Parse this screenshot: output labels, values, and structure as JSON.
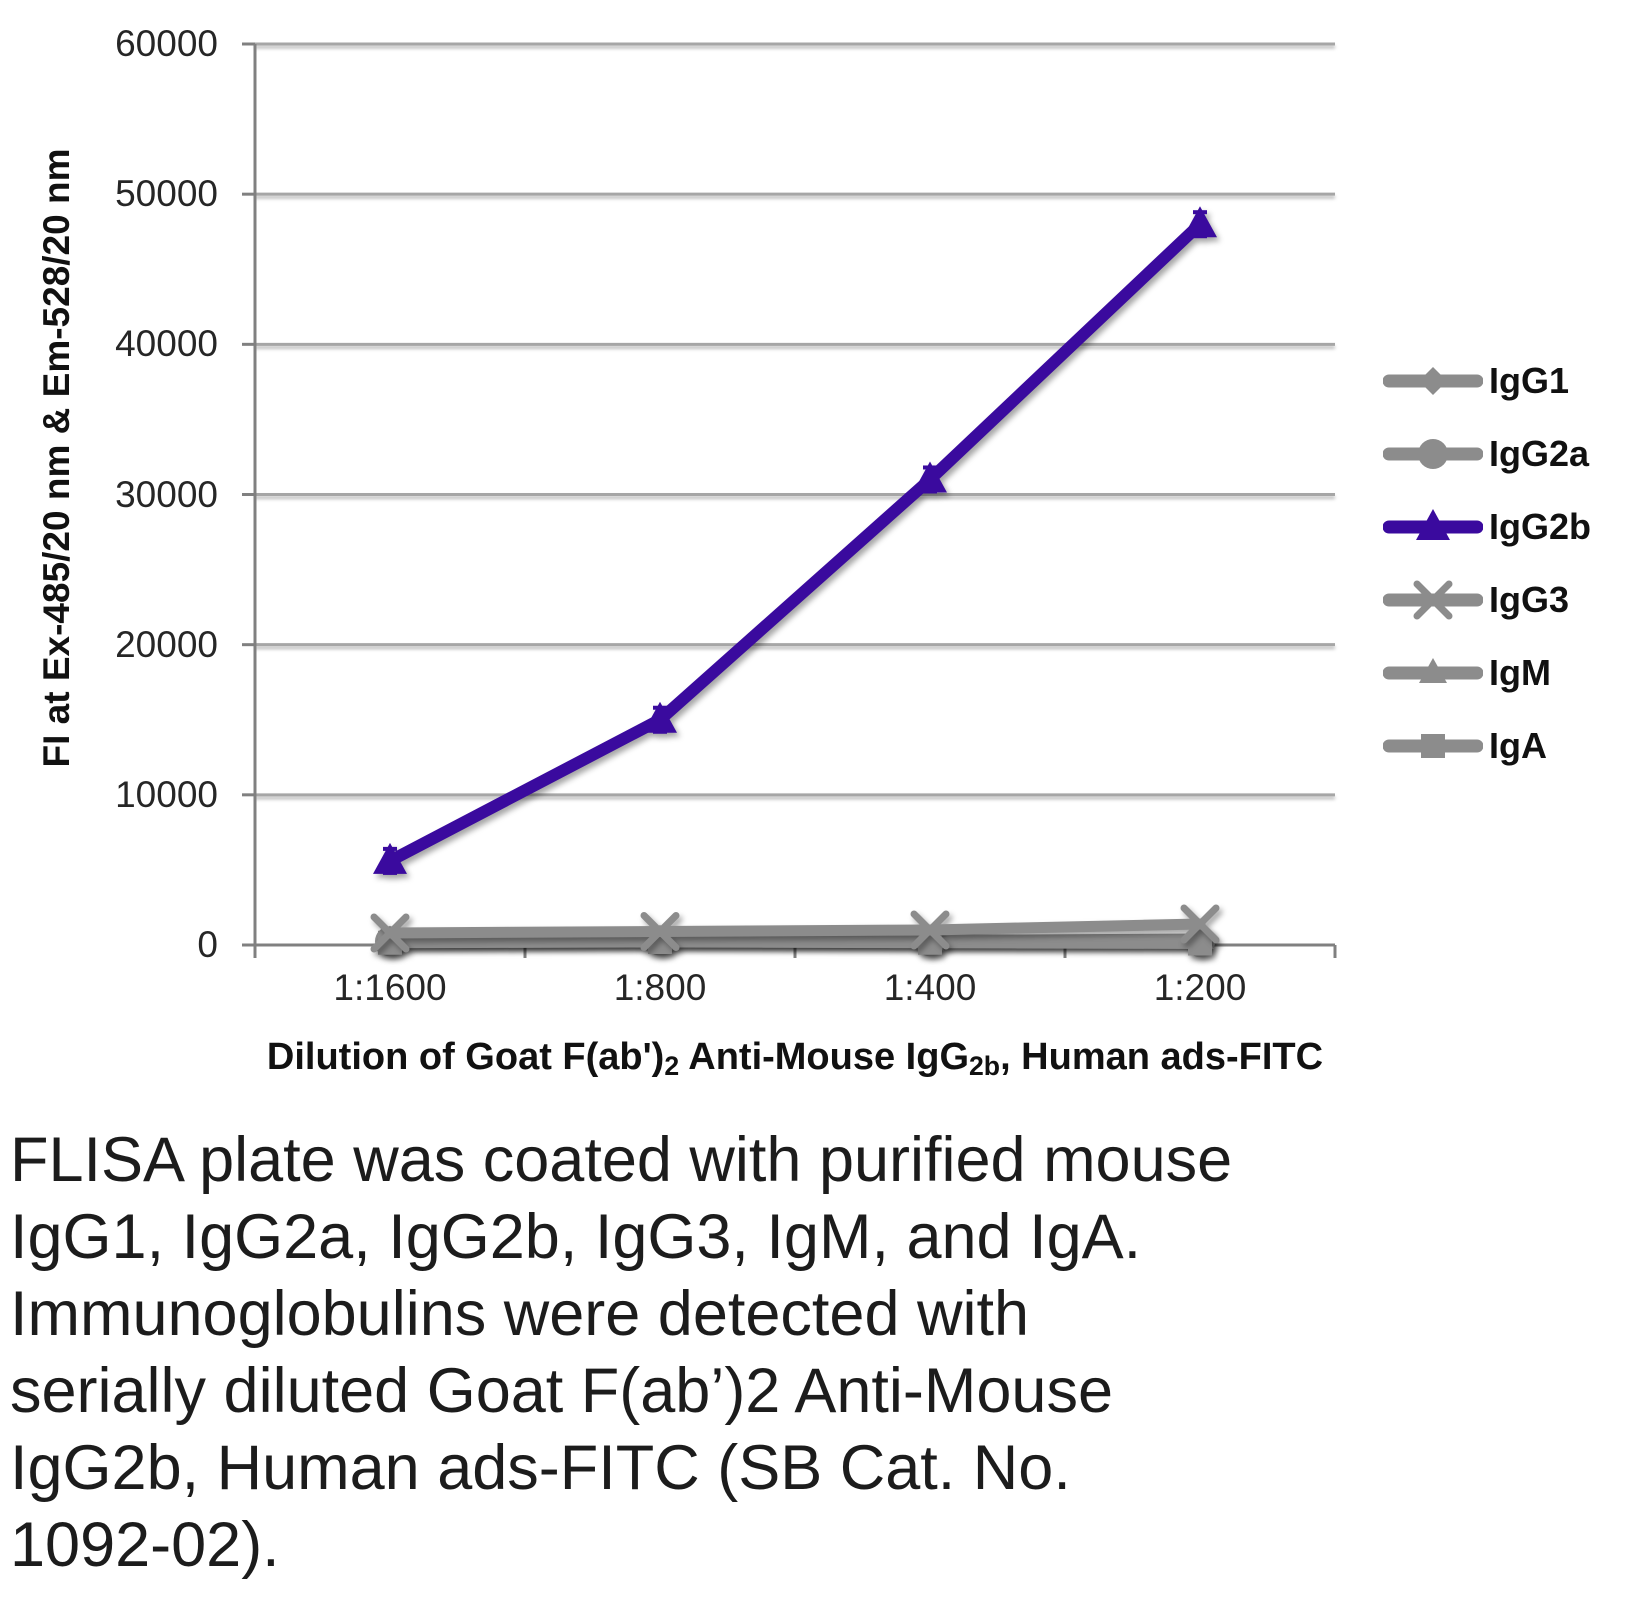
{
  "chart_data": {
    "type": "line",
    "title": "",
    "categories": [
      "1:1600",
      "1:800",
      "1:400",
      "1:200"
    ],
    "series": [
      {
        "name": "IgG1",
        "marker": "diamond",
        "color": "#8C8C8C",
        "values": [
          350,
          400,
          350,
          300
        ]
      },
      {
        "name": "IgG2a",
        "marker": "circle",
        "color": "#8C8C8C",
        "values": [
          250,
          300,
          250,
          200
        ]
      },
      {
        "name": "IgG2b",
        "marker": "triangle",
        "color": "#3A0A9E",
        "values": [
          5600,
          15000,
          31000,
          48000
        ],
        "error": 800
      },
      {
        "name": "IgG3",
        "marker": "x",
        "color": "#8C8C8C",
        "values": [
          800,
          900,
          1000,
          1400
        ]
      },
      {
        "name": "IgM",
        "marker": "triangle",
        "color": "#8C8C8C",
        "values": [
          250,
          300,
          300,
          400
        ]
      },
      {
        "name": "IgA",
        "marker": "square",
        "color": "#8C8C8C",
        "values": [
          150,
          200,
          150,
          100
        ]
      }
    ],
    "ylabel": "FI at Ex-485/20 nm & Em-528/20 nm",
    "xlabel_parts": {
      "pre": "Dilution of Goat F(ab')",
      "sub1": "2",
      "mid": " Anti-Mouse IgG",
      "sub2": "2b",
      "post": ", Human ads-FITC"
    },
    "ylim": [
      0,
      60000
    ],
    "ytick_step": 10000,
    "grid": true,
    "legend_position": "right"
  },
  "caption": {
    "lines": [
      "FLISA plate was coated with purified mouse",
      "IgG1, IgG2a, IgG2b, IgG3, IgM, and IgA.",
      "Immunoglobulins were detected with",
      "serially diluted Goat F(ab’)2 Anti-Mouse",
      "IgG2b, Human ads-FITC (SB Cat. No.",
      "1092-02)."
    ]
  },
  "colors": {
    "accent_purple": "#3A0A9E",
    "series_gray": "#8C8C8C",
    "gridline": "#A6A6A6",
    "axis": "#808080",
    "text": "#1A1A1A"
  }
}
